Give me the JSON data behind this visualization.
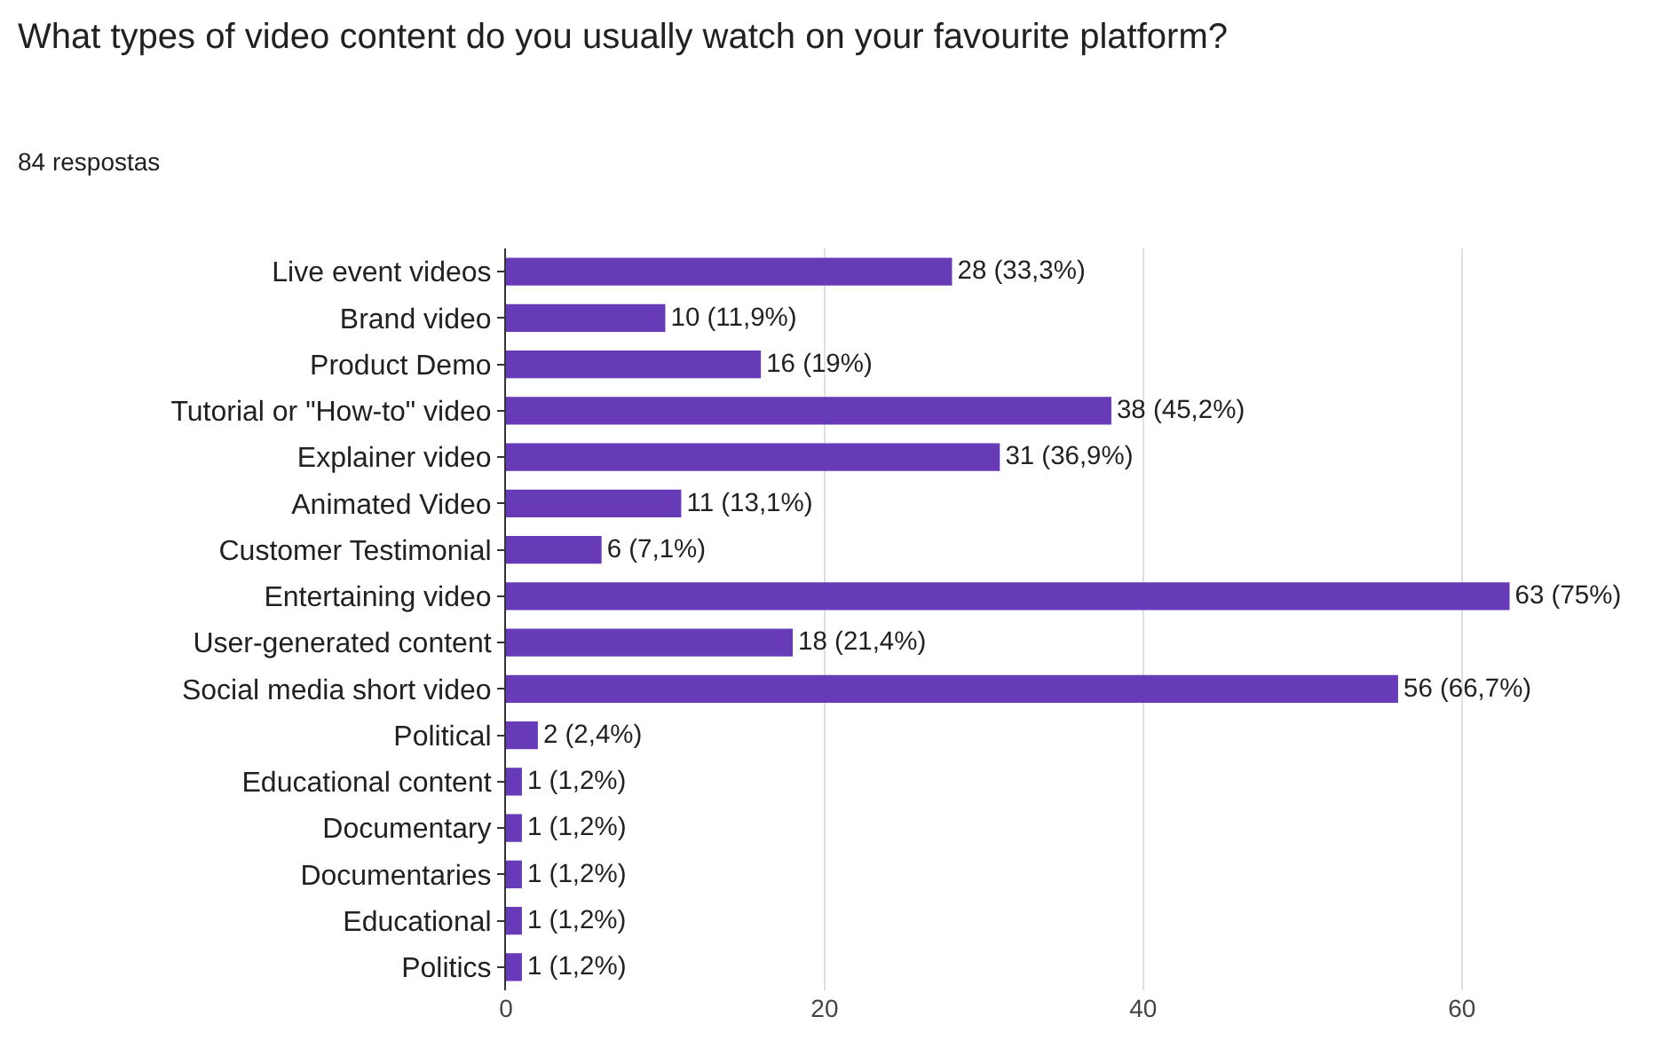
{
  "chart_data": {
    "type": "bar",
    "orientation": "horizontal",
    "title": "What types of video content do you usually watch on your favourite platform?",
    "subtitle": "84 respostas",
    "categories": [
      "Live event videos",
      "Brand video",
      "Product Demo",
      "Tutorial or \"How-to\" video",
      "Explainer video",
      "Animated Video",
      "Customer Testimonial",
      "Entertaining video",
      "User-generated content",
      "Social media short video",
      "Political",
      "Educational content",
      "Documentary",
      "Documentaries",
      "Educational",
      "Politics"
    ],
    "values": [
      28,
      10,
      16,
      38,
      31,
      11,
      6,
      63,
      18,
      56,
      2,
      1,
      1,
      1,
      1,
      1
    ],
    "value_labels": [
      "28 (33,3%)",
      "10 (11,9%)",
      "16 (19%)",
      "38 (45,2%)",
      "31 (36,9%)",
      "11 (13,1%)",
      "6 (7,1%)",
      "63 (75%)",
      "18 (21,4%)",
      "56 (66,7%)",
      "2 (2,4%)",
      "1 (1,2%)",
      "1 (1,2%)",
      "1 (1,2%)",
      "1 (1,2%)",
      "1 (1,2%)"
    ],
    "color": "#673ab7",
    "xlim": [
      0,
      73
    ],
    "xticks": [
      0,
      20,
      40,
      60
    ],
    "grid": "x"
  }
}
